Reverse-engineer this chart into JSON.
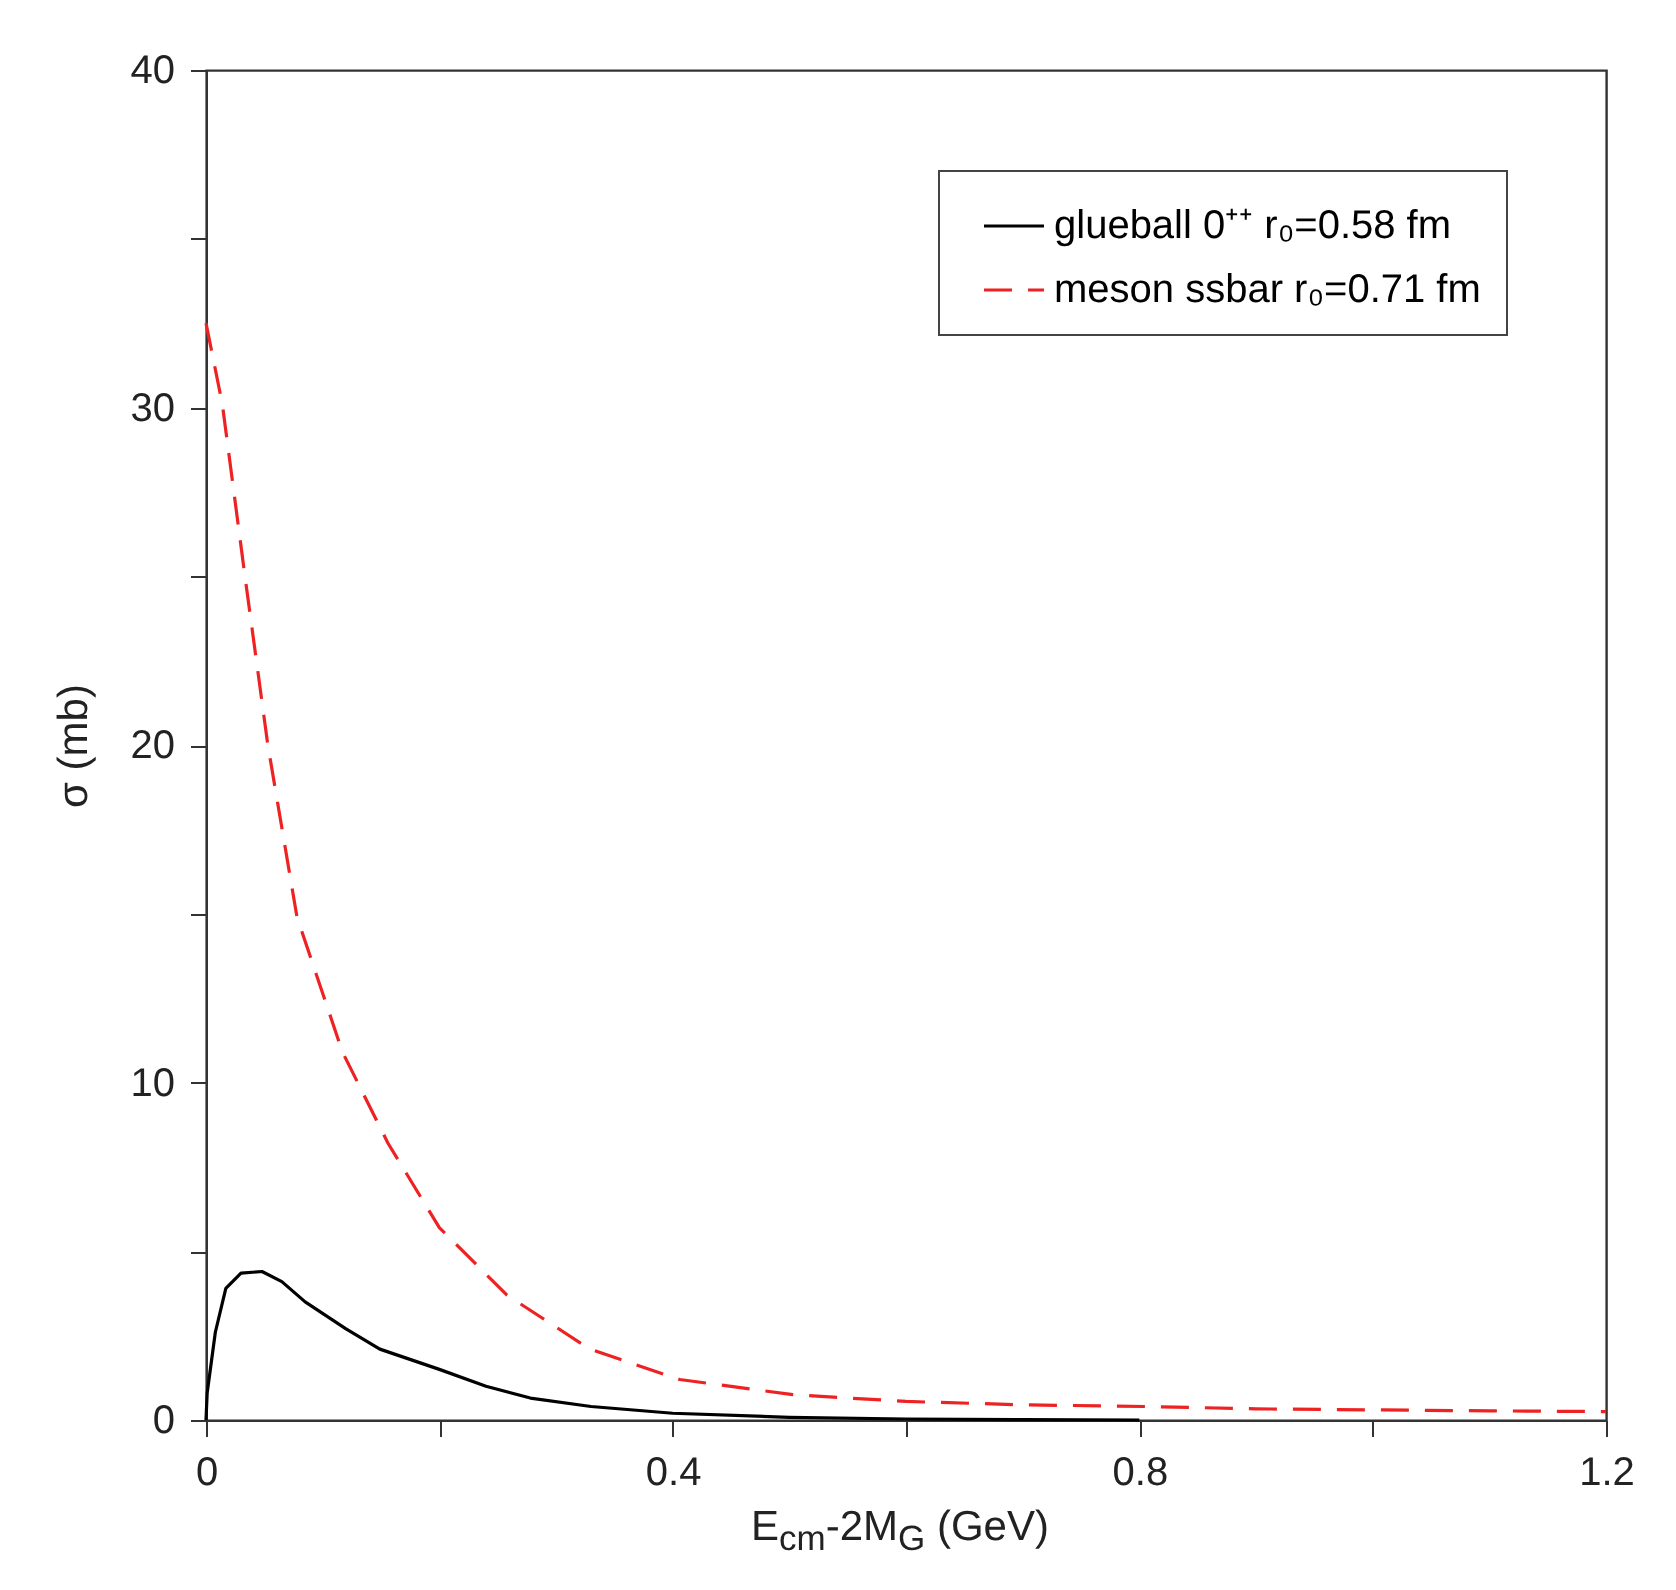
{
  "chart_data": {
    "type": "line",
    "xlabel": "E$_{cm}$-2M$_{G}$ (GeV)",
    "ylabel": "σ (mb)",
    "xlim": [
      0,
      1.2
    ],
    "ylim": [
      0,
      40
    ],
    "xticks": [
      0,
      {
        "value": 0.2,
        "label": null
      },
      0.4,
      {
        "value": 0.6,
        "label": null
      },
      0.8,
      {
        "value": 1.0,
        "label": null
      },
      1.2
    ],
    "yticks": [
      0,
      {
        "value": 5,
        "label": null
      },
      10,
      {
        "value": 15,
        "label": null
      },
      20,
      {
        "value": 25,
        "label": null
      },
      30,
      {
        "value": 35,
        "label": null
      },
      40
    ],
    "grid": false,
    "legend": "top right",
    "series": [
      {
        "name": "glueball 0⁺⁺ r₀=0.58 fm",
        "color": "#000000",
        "line_style": "solid",
        "x": [
          0,
          0.001,
          0.008,
          0.017,
          0.03,
          0.048,
          0.065,
          0.085,
          0.12,
          0.149,
          0.2,
          0.24,
          0.278,
          0.33,
          0.4,
          0.5,
          0.6,
          0.7,
          0.8
        ],
        "values": [
          0,
          0.8,
          2.6,
          3.9,
          4.35,
          4.4,
          4.1,
          3.5,
          2.7,
          2.1,
          1.5,
          1.0,
          0.65,
          0.4,
          0.2,
          0.08,
          0.03,
          0.01,
          0
        ]
      },
      {
        "name": "meson ssbar r₀=0.71 fm",
        "color": "#ee2222",
        "line_style": "dashed",
        "x": [
          0,
          0.014,
          0.033,
          0.053,
          0.078,
          0.117,
          0.156,
          0.2,
          0.258,
          0.329,
          0.406,
          0.503,
          0.6,
          0.7,
          0.805,
          0.9,
          1.0,
          1.1,
          1.2
        ],
        "values": [
          32.5,
          30.1,
          25.1,
          20.0,
          14.9,
          10.9,
          8.2,
          5.7,
          3.7,
          2.1,
          1.2,
          0.75,
          0.55,
          0.45,
          0.4,
          0.33,
          0.3,
          0.27,
          0.25
        ]
      }
    ]
  }
}
